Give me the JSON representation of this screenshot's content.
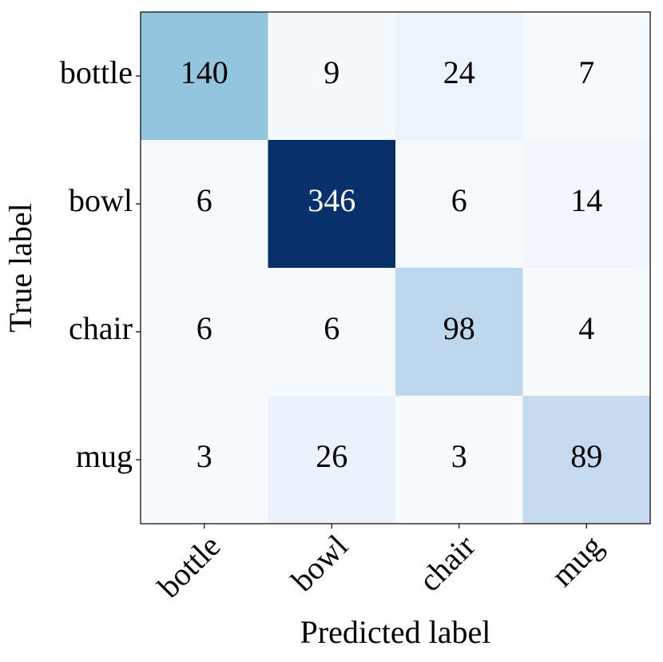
{
  "chart_data": {
    "type": "heatmap",
    "x_label": "Predicted label",
    "y_label": "True label",
    "x_categories": [
      "bottle",
      "bowl",
      "chair",
      "mug"
    ],
    "y_categories": [
      "bottle",
      "bowl",
      "chair",
      "mug"
    ],
    "values": [
      [
        140,
        9,
        24,
        7
      ],
      [
        6,
        346,
        6,
        14
      ],
      [
        6,
        6,
        98,
        4
      ],
      [
        3,
        26,
        3,
        89
      ]
    ],
    "colormap": "Blues"
  }
}
